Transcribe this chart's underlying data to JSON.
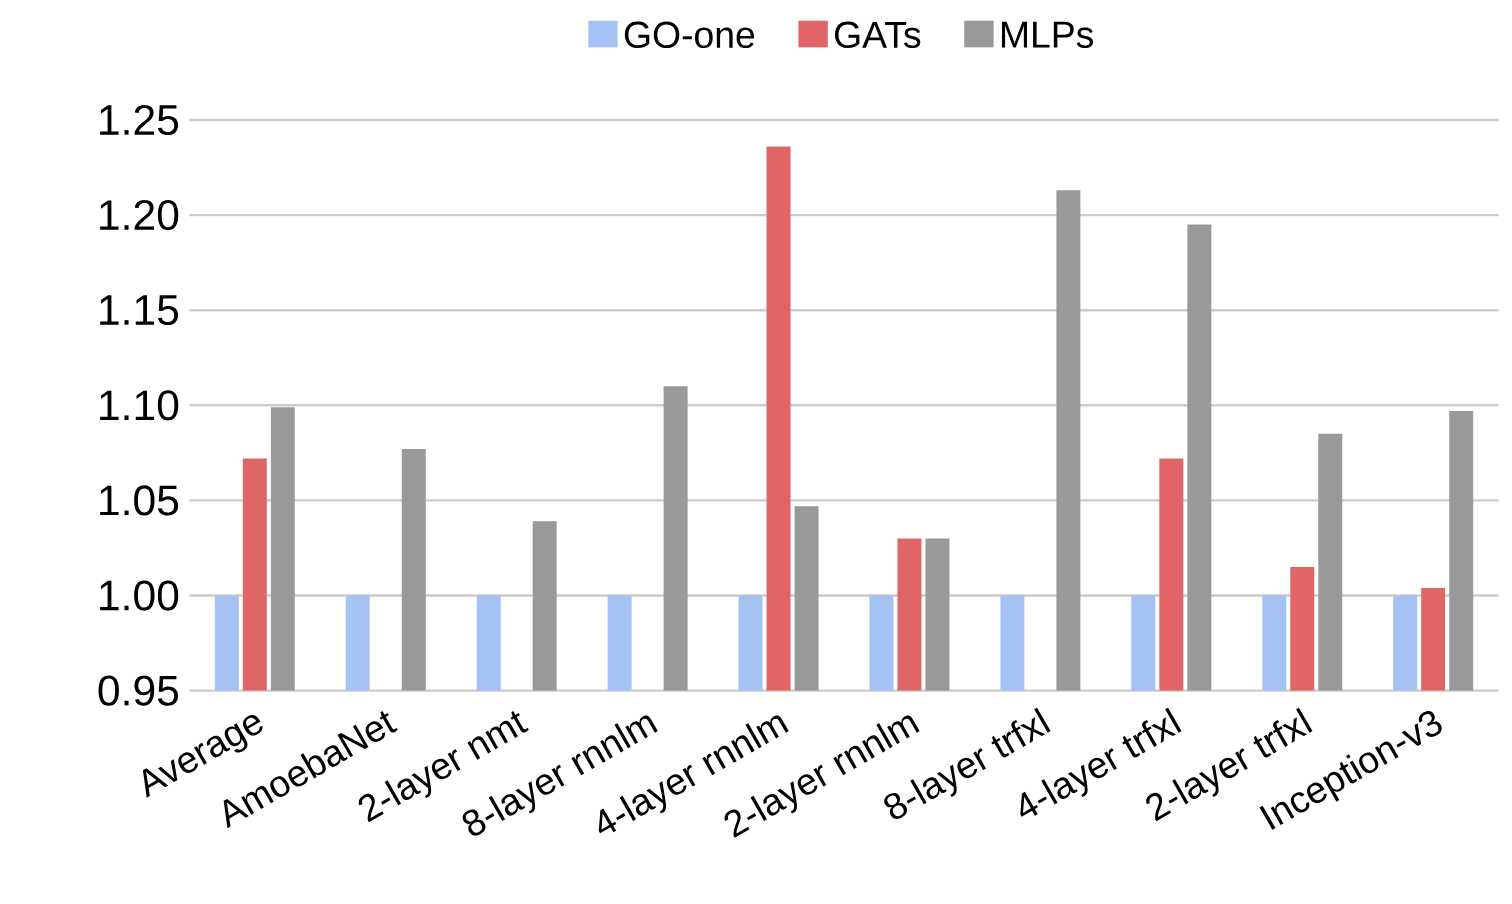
{
  "chart_data": {
    "type": "bar",
    "categories": [
      "Average",
      "AmoebaNet",
      "2-layer nmt",
      "8-layer rnnlm",
      "4-layer rnnlm",
      "2-layer rnnlm",
      "8-layer trfxl",
      "4-layer trfxl",
      "2-layer trfxl",
      "Inception-v3"
    ],
    "series": [
      {
        "name": "GO-one",
        "color": "#a4c2f4",
        "values": [
          1.0,
          1.0,
          1.0,
          1.0,
          1.0,
          1.0,
          1.0,
          1.0,
          1.0,
          1.0
        ]
      },
      {
        "name": "GATs",
        "color": "#e06666",
        "values": [
          1.072,
          null,
          null,
          null,
          1.236,
          1.03,
          null,
          1.072,
          1.015,
          1.004
        ]
      },
      {
        "name": "MLPs",
        "color": "#999999",
        "values": [
          1.099,
          1.077,
          1.039,
          1.11,
          1.047,
          1.03,
          1.213,
          1.195,
          1.085,
          1.097
        ]
      }
    ],
    "ylim": [
      0.95,
      1.25
    ],
    "yticks": [
      0.95,
      {
        "value": 1.0,
        "label": "1.00"
      },
      1.05,
      {
        "value": 1.1,
        "label": "1.10"
      },
      1.15,
      {
        "value": 1.2,
        "label": "1.20"
      },
      1.25
    ],
    "grid": "y",
    "legend": "top"
  }
}
